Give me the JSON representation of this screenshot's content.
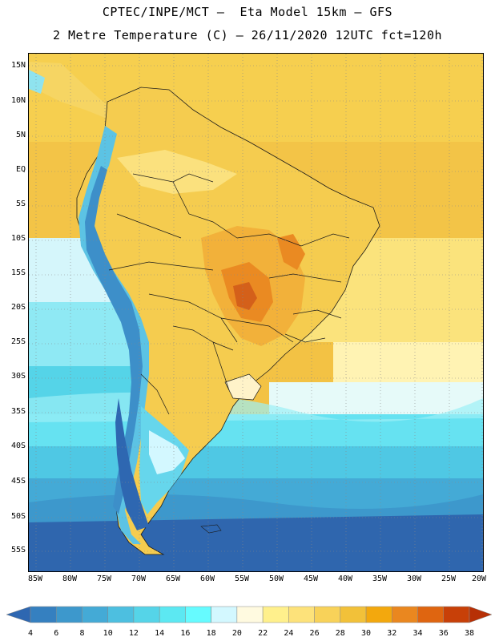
{
  "title_line1": "CPTEC/INPE/MCT –  Eta Model 15km – GFS",
  "title_line2": "2 Metre Temperature (C) – 26/11/2020 12UTC fct=120h",
  "lat_labels": [
    "15N",
    "10N",
    "5N",
    "EQ",
    "5S",
    "10S",
    "15S",
    "20S",
    "25S",
    "30S",
    "35S",
    "40S",
    "45S",
    "50S",
    "55S"
  ],
  "lon_labels": [
    "85W",
    "80W",
    "75W",
    "70W",
    "65W",
    "60W",
    "55W",
    "50W",
    "45W",
    "40W",
    "35W",
    "30W",
    "25W",
    "20W"
  ],
  "colorbar": {
    "labels": [
      "4",
      "6",
      "8",
      "10",
      "12",
      "14",
      "16",
      "18",
      "20",
      "22",
      "24",
      "26",
      "28",
      "30",
      "32",
      "34",
      "36",
      "38"
    ],
    "colors": [
      "#2e67b1",
      "#3580c0",
      "#3d98cc",
      "#44aad6",
      "#4dbfe0",
      "#55d4e8",
      "#5ce8f2",
      "#66fbff",
      "#d3f8ff",
      "#fffae0",
      "#fff08c",
      "#fde27a",
      "#f8d259",
      "#f2c139",
      "#f3a80d",
      "#ea871f",
      "#df6510",
      "#c84008",
      "#b73006"
    ]
  }
}
